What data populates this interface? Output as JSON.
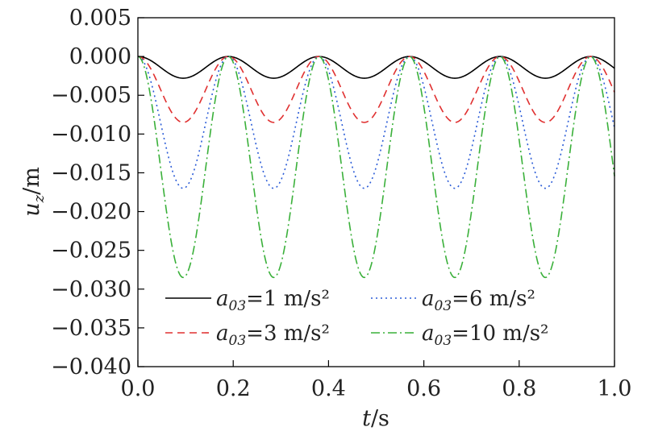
{
  "chart_data": {
    "type": "line",
    "xlabel": {
      "var": "t",
      "unit": "/s"
    },
    "ylabel": {
      "var": "u",
      "sub": "z",
      "unit": "/m"
    },
    "xlim": [
      0.0,
      1.0
    ],
    "ylim": [
      -0.04,
      0.005
    ],
    "xticks": [
      "0.0",
      "0.2",
      "0.4",
      "0.6",
      "0.8",
      "1.0"
    ],
    "xtick_values": [
      0.0,
      0.2,
      0.4,
      0.6,
      0.8,
      1.0
    ],
    "yticks": [
      "0.005",
      "0.000",
      "−0.005",
      "−0.010",
      "−0.015",
      "−0.020",
      "−0.025",
      "−0.030",
      "−0.035",
      "−0.040"
    ],
    "ytick_values": [
      0.005,
      0.0,
      -0.005,
      -0.01,
      -0.015,
      -0.02,
      -0.025,
      -0.03,
      -0.035,
      -0.04
    ],
    "grid": false,
    "legend_position": "bottom-left",
    "period_s": 0.19,
    "series": [
      {
        "legend": {
          "sym": "a",
          "sub": "03",
          "eq": "=",
          "val": "1 m/s²"
        },
        "color": "#000000",
        "dash": "solid",
        "min_value": -0.0028
      },
      {
        "legend": {
          "sym": "a",
          "sub": "03",
          "eq": "=",
          "val": "3 m/s²"
        },
        "color": "#e03030",
        "dash": "dashed",
        "min_value": -0.0085
      },
      {
        "legend": {
          "sym": "a",
          "sub": "03",
          "eq": "=",
          "val": "6 m/s²"
        },
        "color": "#2a5bd7",
        "dash": "dotted",
        "min_value": -0.017
      },
      {
        "legend": {
          "sym": "a",
          "sub": "03",
          "eq": "=",
          "val": "10 m/s²"
        },
        "color": "#3ab03a",
        "dash": "dashdot",
        "min_value": -0.0285
      }
    ]
  }
}
